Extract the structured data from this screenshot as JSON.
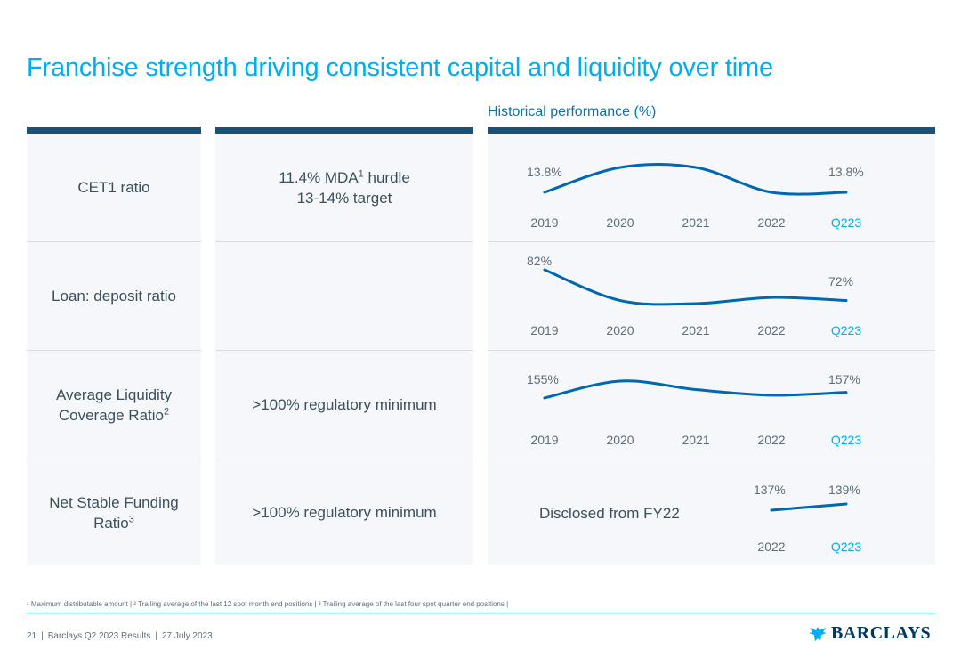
{
  "title": "Franchise strength driving consistent capital and liquidity over time",
  "historical_title": "Historical performance (%)",
  "rows": [
    {
      "metric": "CET1 ratio",
      "metric_sup": "",
      "target": "11.4% MDA",
      "target_sup": "1",
      "target_rest": " hurdle",
      "target_line2": "13-14% target"
    },
    {
      "metric": "Loan: deposit ratio",
      "metric_sup": "",
      "target": "",
      "target_sup": "",
      "target_rest": "",
      "target_line2": ""
    },
    {
      "metric_line1": "Average Liquidity",
      "metric_line2": "Coverage Ratio",
      "metric_sup": "2",
      "target": ">100% regulatory minimum"
    },
    {
      "metric_line1": "Net Stable Funding",
      "metric_line2": "Ratio",
      "metric_sup": "3",
      "target": ">100% regulatory minimum"
    }
  ],
  "chart_data": [
    {
      "type": "line",
      "name": "CET1 ratio",
      "categories": [
        "2019",
        "2020",
        "2021",
        "2022",
        "Q223"
      ],
      "values": [
        13.8,
        14.1,
        14.1,
        13.8,
        13.8
      ],
      "start_label": "13.8%",
      "end_label": "13.8%",
      "highlight_category": "Q223"
    },
    {
      "type": "line",
      "name": "Loan: deposit ratio",
      "categories": [
        "2019",
        "2020",
        "2021",
        "2022",
        "Q223"
      ],
      "values": [
        82,
        72,
        71,
        73,
        72
      ],
      "start_label": "82%",
      "end_label": "72%",
      "highlight_category": "Q223"
    },
    {
      "type": "line",
      "name": "Average Liquidity Coverage Ratio",
      "categories": [
        "2019",
        "2020",
        "2021",
        "2022",
        "Q223"
      ],
      "values": [
        155,
        161,
        158,
        156,
        157
      ],
      "start_label": "155%",
      "end_label": "157%",
      "highlight_category": "Q223"
    },
    {
      "type": "line",
      "name": "Net Stable Funding Ratio",
      "categories": [
        "2022",
        "Q223"
      ],
      "values": [
        137,
        139
      ],
      "start_label": "137%",
      "end_label": "139%",
      "highlight_category": "Q223",
      "note": "Disclosed from FY22"
    }
  ],
  "footnote": "¹ Maximum distributable amount | ² Trailing average of the last 12 spot month end positions | ³ Trailing average of the last four spot quarter end positions |",
  "footer": {
    "page": "21",
    "deck": "Barclays Q2 2023 Results",
    "date": "27 July 2023",
    "brand": "BARCLAYS"
  },
  "colors": {
    "accent": "#00aeef",
    "line": "#0067b1",
    "bar": "#1a5276"
  }
}
